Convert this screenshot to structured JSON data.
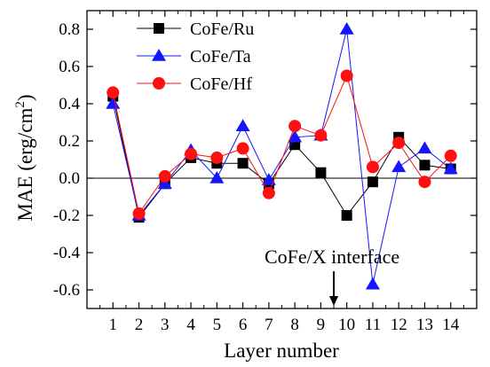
{
  "chart_data": {
    "type": "line",
    "xlabel": "Layer number",
    "ylabel_main": "MAE (erg/cm",
    "ylabel_sup": "2",
    "ylabel_close": ")",
    "x": [
      1,
      2,
      3,
      4,
      5,
      6,
      7,
      8,
      9,
      10,
      11,
      12,
      13,
      14
    ],
    "xlim": [
      0,
      15
    ],
    "ylim": [
      -0.7,
      0.9
    ],
    "xticks": [
      "1",
      "2",
      "3",
      "4",
      "5",
      "6",
      "7",
      "8",
      "9",
      "10",
      "11",
      "12",
      "13",
      "14"
    ],
    "yticks": [
      "-0.6",
      "-0.4",
      "-0.2",
      "0.0",
      "0.2",
      "0.4",
      "0.6",
      "0.8"
    ],
    "ytick_values": [
      -0.6,
      -0.4,
      -0.2,
      0.0,
      0.2,
      0.4,
      0.6,
      0.8
    ],
    "zero_line": true,
    "legend_position": "top-left",
    "series": [
      {
        "name": "CoFe/Ru",
        "color": "#000000",
        "marker": "square",
        "values": [
          0.44,
          -0.21,
          -0.03,
          0.11,
          0.08,
          0.08,
          -0.03,
          0.18,
          0.03,
          -0.2,
          -0.02,
          0.22,
          0.07,
          0.05
        ]
      },
      {
        "name": "CoFe/Ta",
        "color": "#1515ff",
        "marker": "triangle",
        "values": [
          0.4,
          -0.2,
          -0.03,
          0.15,
          0.0,
          0.28,
          -0.01,
          0.22,
          0.23,
          0.8,
          -0.57,
          0.06,
          0.16,
          0.05
        ]
      },
      {
        "name": "CoFe/Hf",
        "color": "#ff1010",
        "marker": "circle",
        "values": [
          0.46,
          -0.19,
          0.01,
          0.13,
          0.11,
          0.16,
          -0.08,
          0.28,
          0.23,
          0.55,
          0.06,
          0.19,
          -0.02,
          0.12
        ]
      }
    ],
    "annotation": {
      "text": "CoFe/X interface",
      "arrow_x": 9.5
    }
  }
}
